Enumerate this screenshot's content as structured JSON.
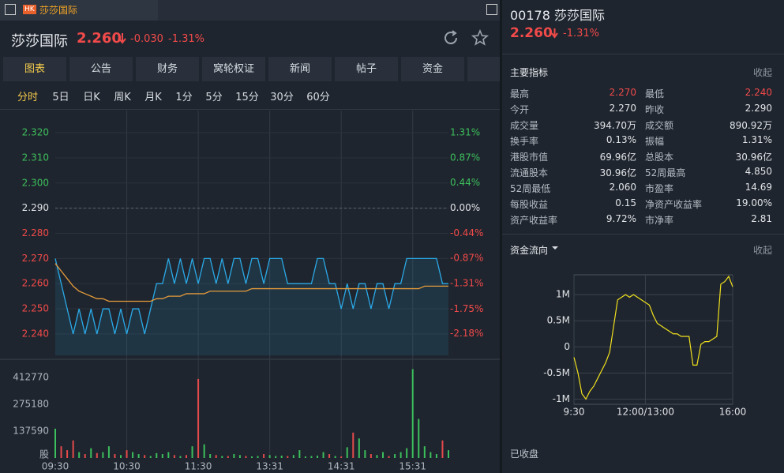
{
  "tab": {
    "badge": "HK",
    "title": "莎莎国际"
  },
  "header": {
    "name": "莎莎国际",
    "price": "2.260",
    "change": "-0.030",
    "pct": "-1.31%"
  },
  "tabs": [
    "图表",
    "公告",
    "财务",
    "窝轮权证",
    "新闻",
    "帖子",
    "资金"
  ],
  "periods": [
    "分时",
    "5日",
    "日K",
    "周K",
    "月K",
    "1分",
    "5分",
    "15分",
    "30分",
    "60分"
  ],
  "side": {
    "code_name": "00178 莎莎国际",
    "price": "2.260",
    "pct": "-1.31%",
    "metrics_title": "主要指标",
    "collapse": "收起",
    "rows": [
      [
        "最高",
        "2.270",
        "最低",
        "2.240"
      ],
      [
        "今开",
        "2.270",
        "昨收",
        "2.290"
      ],
      [
        "成交量",
        "394.70万",
        "成交额",
        "890.92万"
      ],
      [
        "换手率",
        "0.13%",
        "振幅",
        "1.31%"
      ],
      [
        "港股市值",
        "69.96亿",
        "总股本",
        "30.96亿"
      ],
      [
        "流通股本",
        "30.96亿",
        "52周最高",
        "4.850"
      ],
      [
        "52周最低",
        "2.060",
        "市盈率",
        "14.69"
      ],
      [
        "每股收益",
        "0.15",
        "净资产收益率",
        "19.00%"
      ],
      [
        "资产收益率",
        "9.72%",
        "市净率",
        "2.81"
      ]
    ],
    "flow_title": "资金流向",
    "flow_collapse": "收起",
    "status": "已收盘"
  },
  "chart_data": [
    {
      "type": "line",
      "prev_close": 2.29,
      "grid": true,
      "xlim": [
        0,
        66
      ],
      "xticks": [
        {
          "value": 0,
          "label": "09:30"
        },
        {
          "value": 12,
          "label": "10:30"
        },
        {
          "value": 24,
          "label": "11:30"
        },
        {
          "value": 36,
          "label": "13:31"
        },
        {
          "value": 48,
          "label": "14:31"
        },
        {
          "value": 60,
          "label": "15:31"
        }
      ],
      "ylim": [
        2.2315,
        2.3288
      ],
      "yticks": [
        {
          "value": 2.32,
          "label": "2.320"
        },
        {
          "value": 2.31,
          "label": "2.310"
        },
        {
          "value": 2.3,
          "label": "2.300"
        },
        {
          "value": 2.29,
          "label": "2.290"
        },
        {
          "value": 2.28,
          "label": "2.280"
        },
        {
          "value": 2.27,
          "label": "2.270"
        },
        {
          "value": 2.26,
          "label": "2.260"
        },
        {
          "value": 2.25,
          "label": "2.250"
        },
        {
          "value": 2.24,
          "label": "2.240"
        }
      ],
      "y2lim": [
        -2.555,
        1.694
      ],
      "y2ticks": [
        {
          "value": 1.31,
          "label": "1.31%"
        },
        {
          "value": 0.87,
          "label": "0.87%"
        },
        {
          "value": 0.44,
          "label": "0.44%"
        },
        {
          "value": 0,
          "label": "0.00%"
        },
        {
          "value": -0.44,
          "label": "-0.44%"
        },
        {
          "value": -0.87,
          "label": "-0.87%"
        },
        {
          "value": -1.31,
          "label": "-1.31%"
        },
        {
          "value": -1.75,
          "label": "-1.75%"
        },
        {
          "value": -2.18,
          "label": "-2.18%"
        }
      ],
      "series": [
        {
          "color": "#2aa9e6",
          "values": [
            2.27,
            2.26,
            2.25,
            2.24,
            2.25,
            2.24,
            2.25,
            2.24,
            2.25,
            2.25,
            2.24,
            2.25,
            2.24,
            2.25,
            2.25,
            2.24,
            2.25,
            2.26,
            2.26,
            2.27,
            2.26,
            2.27,
            2.26,
            2.27,
            2.26,
            2.27,
            2.27,
            2.26,
            2.27,
            2.26,
            2.27,
            2.27,
            2.26,
            2.27,
            2.27,
            2.26,
            2.27,
            2.27,
            2.27,
            2.26,
            2.26,
            2.26,
            2.26,
            2.26,
            2.27,
            2.27,
            2.26,
            2.26,
            2.25,
            2.26,
            2.25,
            2.26,
            2.26,
            2.25,
            2.26,
            2.26,
            2.25,
            2.26,
            2.26,
            2.27,
            2.27,
            2.27,
            2.27,
            2.27,
            2.27,
            2.26,
            2.26
          ]
        },
        {
          "color": "#e39a3b",
          "values": [
            2.268,
            2.265,
            2.262,
            2.259,
            2.257,
            2.256,
            2.255,
            2.254,
            2.254,
            2.253,
            2.253,
            2.253,
            2.253,
            2.253,
            2.253,
            2.253,
            2.253,
            2.254,
            2.254,
            2.255,
            2.255,
            2.255,
            2.256,
            2.256,
            2.256,
            2.256,
            2.257,
            2.257,
            2.257,
            2.257,
            2.257,
            2.257,
            2.257,
            2.258,
            2.258,
            2.258,
            2.258,
            2.258,
            2.258,
            2.258,
            2.258,
            2.258,
            2.258,
            2.258,
            2.258,
            2.258,
            2.258,
            2.258,
            2.258,
            2.258,
            2.258,
            2.258,
            2.258,
            2.258,
            2.258,
            2.258,
            2.258,
            2.258,
            2.258,
            2.258,
            2.258,
            2.258,
            2.259,
            2.259,
            2.259,
            2.259,
            2.259
          ]
        }
      ]
    },
    {
      "type": "bar",
      "up_color": "#3cbf5c",
      "down_color": "#e34b4b",
      "xlim": [
        0,
        66
      ],
      "ylim": [
        0,
        465000
      ],
      "yticks": [
        {
          "value": 0,
          "label": "股"
        },
        137590,
        275180,
        412770
      ],
      "values": [
        150000,
        60000,
        40000,
        90000,
        30000,
        20000,
        50000,
        25000,
        30000,
        60000,
        20000,
        15000,
        40000,
        30000,
        20000,
        15000,
        10000,
        25000,
        20000,
        30000,
        15000,
        10000,
        15000,
        60000,
        405000,
        70000,
        20000,
        15000,
        10000,
        10000,
        20000,
        15000,
        10000,
        8000,
        10000,
        20000,
        15000,
        10000,
        12000,
        10000,
        15000,
        40000,
        8000,
        10000,
        12000,
        30000,
        20000,
        10000,
        8000,
        55000,
        130000,
        100000,
        40000,
        20000,
        15000,
        30000,
        10000,
        20000,
        30000,
        50000,
        455000,
        200000,
        60000,
        30000,
        20000,
        90000,
        40000
      ]
    },
    {
      "type": "line",
      "grid": true,
      "color": "#f0e11e",
      "xlim": [
        0,
        40
      ],
      "xticks": [
        {
          "value": 0,
          "label": "9:30"
        },
        {
          "value": 18,
          "label": "12:00/13:00"
        },
        {
          "value": 40,
          "label": "16:00"
        }
      ],
      "ylim": [
        -1100000,
        1380000
      ],
      "yticks": [
        {
          "value": 1000000,
          "label": "1M"
        },
        {
          "value": 500000,
          "label": "0.5M"
        },
        0,
        {
          "value": -500000,
          "label": "-0.5M"
        },
        {
          "value": -1000000,
          "label": "-1M"
        }
      ],
      "values": [
        -200000,
        -500000,
        -900000,
        -1000000,
        -850000,
        -750000,
        -600000,
        -450000,
        -300000,
        -100000,
        400000,
        900000,
        950000,
        1000000,
        950000,
        1000000,
        950000,
        900000,
        850000,
        800000,
        600000,
        450000,
        400000,
        350000,
        300000,
        250000,
        250000,
        200000,
        200000,
        200000,
        -350000,
        -350000,
        50000,
        100000,
        100000,
        150000,
        200000,
        1200000,
        1250000,
        1350000,
        1150000
      ]
    }
  ]
}
